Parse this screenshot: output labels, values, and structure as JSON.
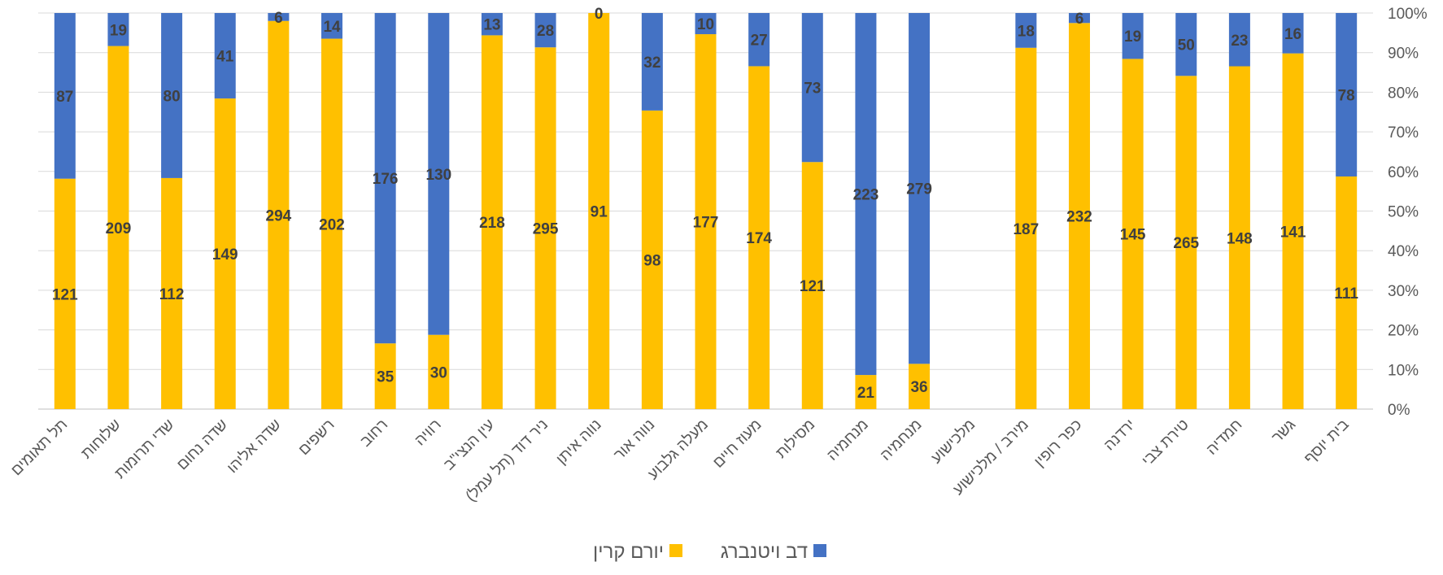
{
  "chart_data": {
    "type": "bar",
    "stacked": "percent",
    "y_axis_position": "right",
    "ylim": [
      0,
      100
    ],
    "y_ticks": [
      "0%",
      "10%",
      "20%",
      "30%",
      "40%",
      "50%",
      "60%",
      "70%",
      "80%",
      "90%",
      "100%"
    ],
    "grid": true,
    "legend_position": "bottom",
    "categories": [
      "תל תאומים",
      "שלוחות",
      "שדי תרומות",
      "שדה נחום",
      "שדה אליהו",
      "רשפים",
      "רחוב",
      "רוויה",
      "עין הנצי\"ב",
      "ניר דוד (תל עמל)",
      "נווה איתן",
      "נווה אור",
      "מעלה גלבוע",
      "מעוז חיים",
      "מסילות",
      "מנחמיה",
      "מנחמיה",
      "מלכישוע",
      "מירב / מלכישוע",
      "כפר רופין",
      "ירדנה",
      "טירת צבי",
      "חמדיה",
      "גשר",
      "בית יוסף"
    ],
    "series": [
      {
        "name": "יורם קרין",
        "color": "#FFC000",
        "values": [
          121,
          209,
          112,
          149,
          294,
          202,
          35,
          30,
          218,
          295,
          91,
          98,
          177,
          174,
          121,
          21,
          36,
          null,
          187,
          232,
          145,
          265,
          148,
          141,
          111
        ]
      },
      {
        "name": "דב ויטנברג",
        "color": "#4472C4",
        "values": [
          87,
          19,
          80,
          41,
          6,
          14,
          176,
          130,
          13,
          28,
          0,
          32,
          10,
          27,
          73,
          223,
          279,
          null,
          18,
          6,
          19,
          50,
          23,
          16,
          78
        ]
      }
    ]
  }
}
